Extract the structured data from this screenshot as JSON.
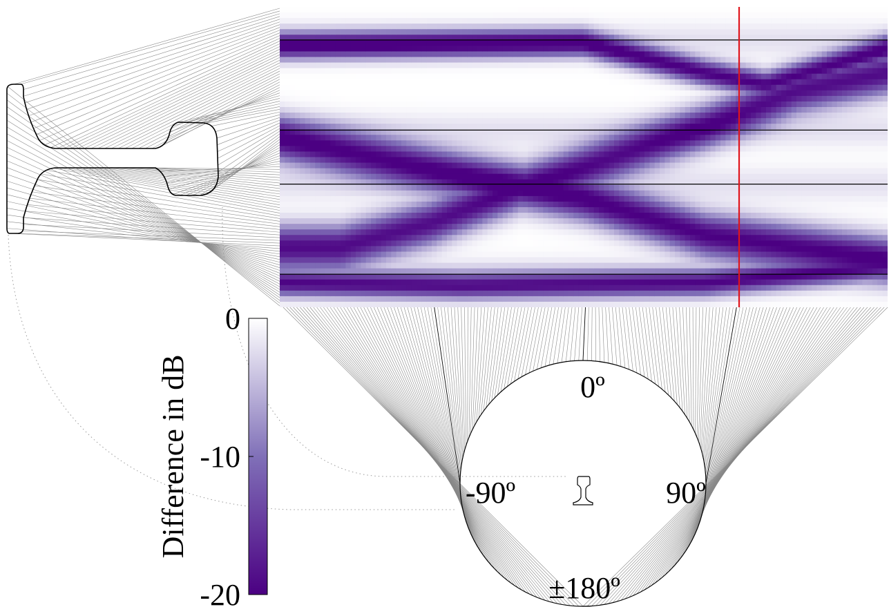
{
  "chart_data": {
    "type": "heatmap",
    "title": "",
    "xlabel": "",
    "ylabel": "",
    "colorbar": {
      "label": "Difference in dB",
      "range": [
        -20,
        0
      ],
      "ticks": [
        0,
        -10,
        -20
      ],
      "colors": {
        "high": "#ffffff",
        "mid": "#8070b8",
        "low": "#4b0082"
      }
    },
    "angle_labels": [
      "0º",
      "-90º",
      "90º",
      "±180º"
    ],
    "angle_range": [
      -180,
      180
    ],
    "highlight_angle": 90,
    "highlight_color": "#e0141c",
    "heatmap": {
      "columns": 120,
      "rows": 54,
      "row_separators_fraction": [
        0.11,
        0.41,
        0.59,
        0.89
      ],
      "low_bands_dB": [
        {
          "centers": [
            [
              0.0,
              0.13
            ],
            [
              0.5,
              0.12
            ],
            [
              0.7,
              0.22
            ],
            [
              0.8,
              0.26
            ],
            [
              1.0,
              0.14
            ]
          ],
          "width": 0.03,
          "depth": -20
        },
        {
          "centers": [
            [
              0.0,
              0.44
            ],
            [
              0.2,
              0.52
            ],
            [
              0.35,
              0.58
            ],
            [
              0.5,
              0.64
            ],
            [
              0.7,
              0.76
            ],
            [
              1.0,
              0.84
            ]
          ],
          "width": 0.05,
          "depth": -20
        },
        {
          "centers": [
            [
              0.1,
              0.8
            ],
            [
              0.25,
              0.72
            ],
            [
              0.4,
              0.6
            ],
            [
              0.55,
              0.5
            ],
            [
              0.7,
              0.4
            ],
            [
              0.85,
              0.28
            ],
            [
              1.0,
              0.22
            ]
          ],
          "width": 0.05,
          "depth": -19
        },
        {
          "centers": [
            [
              0.0,
              0.92
            ],
            [
              0.3,
              0.93
            ],
            [
              0.7,
              0.92
            ],
            [
              1.0,
              0.86
            ]
          ],
          "width": 0.03,
          "depth": -18
        }
      ]
    }
  }
}
